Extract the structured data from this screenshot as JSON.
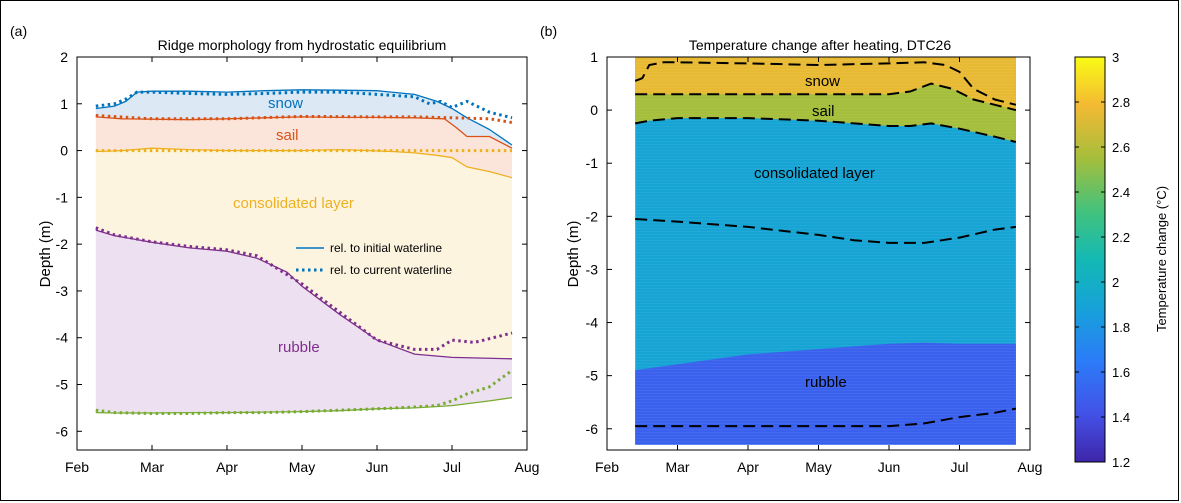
{
  "colors": {
    "snow": "#0072BD",
    "sail": "#D95319",
    "consolidated": "#EDB120",
    "rubble": "#7E2F8E",
    "bottom": "#77AC30",
    "snow_fill": "#dce9f5",
    "sail_fill": "#fbe5da",
    "consolidated_fill": "#fdf4e0",
    "rubble_fill": "#ede0f0",
    "contour": "#000000"
  },
  "x_ticks": [
    "Feb",
    "Mar",
    "Apr",
    "May",
    "Jun",
    "Jul",
    "Aug"
  ],
  "chart_data": [
    {
      "panel_label": "(a)",
      "type": "area",
      "title": "Ridge morphology from hydrostatic equilibrium",
      "xlabel": "",
      "ylabel": "Depth (m)",
      "ylim": [
        -6.4,
        2
      ],
      "xlim": [
        0,
        6
      ],
      "x_axis": "month (0 = Feb, 6 = Aug)",
      "yticks": [
        2,
        1,
        0,
        -1,
        -2,
        -3,
        -4,
        -5,
        -6
      ],
      "annotations": [
        "snow",
        "sail",
        "consolidated layer",
        "rubble"
      ],
      "legend": {
        "position": "right-middle",
        "entries": [
          "rel. to initial waterline",
          "rel. to current waterline"
        ]
      },
      "series": [
        {
          "key": "snow",
          "style": "solid",
          "x": [
            0.25,
            0.5,
            0.65,
            0.8,
            1,
            1.5,
            2,
            2.5,
            3,
            3.5,
            4,
            4.5,
            4.8,
            5,
            5.2,
            5.5,
            5.8
          ],
          "y": [
            0.9,
            0.95,
            1.05,
            1.25,
            1.27,
            1.27,
            1.25,
            1.28,
            1.3,
            1.29,
            1.28,
            1.2,
            1.05,
            0.9,
            0.7,
            0.45,
            0.12
          ]
        },
        {
          "key": "snow",
          "style": "dotted",
          "x": [
            0.25,
            0.5,
            0.65,
            0.8,
            1,
            1.5,
            2,
            2.5,
            3,
            3.5,
            4,
            4.5,
            4.7,
            4.85,
            5,
            5.2,
            5.5,
            5.8
          ],
          "y": [
            0.95,
            1.0,
            1.1,
            1.25,
            1.25,
            1.22,
            1.2,
            1.22,
            1.25,
            1.25,
            1.2,
            1.15,
            1.0,
            1.05,
            0.92,
            1.05,
            0.82,
            0.7
          ]
        },
        {
          "key": "sail",
          "style": "solid",
          "x": [
            0.25,
            0.6,
            1,
            1.5,
            2,
            2.5,
            3,
            3.5,
            4,
            4.5,
            4.9,
            5.05,
            5.2,
            5.5,
            5.8
          ],
          "y": [
            0.72,
            0.68,
            0.67,
            0.66,
            0.68,
            0.7,
            0.72,
            0.71,
            0.71,
            0.7,
            0.68,
            0.5,
            0.3,
            0.3,
            0.05
          ]
        },
        {
          "key": "sail",
          "style": "dotted",
          "x": [
            0.25,
            1,
            2,
            3,
            4,
            4.5,
            5,
            5.5,
            5.8
          ],
          "y": [
            0.75,
            0.68,
            0.68,
            0.73,
            0.72,
            0.72,
            0.7,
            0.68,
            0.6
          ]
        },
        {
          "key": "consolidated",
          "style": "solid",
          "x": [
            0.25,
            0.6,
            1,
            1.5,
            2,
            2.5,
            3,
            3.5,
            3.9,
            4.2,
            4.5,
            4.8,
            5,
            5.2,
            5.5,
            5.8
          ],
          "y": [
            -0.02,
            0,
            0.05,
            0.02,
            0,
            0,
            0,
            0.02,
            0,
            -0.02,
            -0.05,
            -0.1,
            -0.15,
            -0.35,
            -0.45,
            -0.58
          ]
        },
        {
          "key": "consolidated",
          "style": "dotted",
          "x": [
            0.25,
            1,
            2,
            3,
            4,
            5,
            5.8
          ],
          "y": [
            0,
            0,
            0,
            0,
            0,
            0,
            0
          ]
        },
        {
          "key": "rubble",
          "style": "solid",
          "x": [
            0.25,
            0.5,
            1,
            1.5,
            2,
            2.4,
            2.8,
            3,
            3.5,
            4,
            4.5,
            5,
            5.8
          ],
          "y": [
            -1.7,
            -1.82,
            -1.96,
            -2.08,
            -2.15,
            -2.3,
            -2.6,
            -2.9,
            -3.5,
            -4.05,
            -4.35,
            -4.42,
            -4.45
          ]
        },
        {
          "key": "rubble",
          "style": "dotted",
          "x": [
            0.25,
            0.5,
            1,
            1.5,
            2,
            2.4,
            2.8,
            3,
            3.5,
            4,
            4.5,
            4.8,
            5,
            5.3,
            5.8
          ],
          "y": [
            -1.65,
            -1.8,
            -1.95,
            -2.05,
            -2.12,
            -2.25,
            -2.65,
            -2.85,
            -3.45,
            -4.05,
            -4.25,
            -4.25,
            -4.05,
            -4.1,
            -3.9
          ]
        },
        {
          "key": "bottom",
          "style": "solid",
          "x": [
            0.25,
            0.5,
            1,
            1.5,
            2,
            2.5,
            3,
            3.5,
            4,
            4.5,
            5,
            5.5,
            5.8
          ],
          "y": [
            -5.6,
            -5.61,
            -5.61,
            -5.6,
            -5.6,
            -5.59,
            -5.58,
            -5.56,
            -5.52,
            -5.5,
            -5.45,
            -5.35,
            -5.28
          ]
        },
        {
          "key": "bottom",
          "style": "dotted",
          "x": [
            0.25,
            0.5,
            1,
            1.5,
            2,
            2.5,
            3,
            3.5,
            4,
            4.5,
            4.8,
            5,
            5.2,
            5.5,
            5.8
          ],
          "y": [
            -5.55,
            -5.6,
            -5.62,
            -5.62,
            -5.6,
            -5.6,
            -5.58,
            -5.55,
            -5.52,
            -5.48,
            -5.45,
            -5.35,
            -5.2,
            -5.05,
            -4.7
          ]
        }
      ]
    },
    {
      "panel_label": "(b)",
      "type": "heatmap",
      "title": "Temperature change after heating, DTC26",
      "xlabel": "",
      "ylabel": "Depth (m)",
      "ylim": [
        -6.4,
        1
      ],
      "xlim": [
        0,
        6
      ],
      "x_axis": "month (0 = Feb, 6 = Aug)",
      "yticks": [
        1,
        0,
        -1,
        -2,
        -3,
        -4,
        -5,
        -6
      ],
      "annotations": [
        "snow",
        "sail",
        "consolidated layer",
        "rubble"
      ],
      "colorbar": {
        "label": "Temperature change (°C)",
        "range": [
          1.2,
          3
        ],
        "ticks": [
          "3",
          "2.8",
          "2.6",
          "2.4",
          "2.2",
          "2",
          "1.8",
          "1.6",
          "1.4",
          "1.2"
        ]
      },
      "regions": [
        {
          "name": "snow",
          "value": 2.75
        },
        {
          "name": "sail",
          "value": 2.55
        },
        {
          "name": "consolidated layer",
          "value": 1.9
        },
        {
          "name": "rubble",
          "value": 1.5
        }
      ],
      "contours": [
        {
          "name": "snow top",
          "x": [
            0.4,
            0.5,
            0.6,
            0.8,
            1,
            2,
            3,
            4,
            4.5,
            4.8,
            5,
            5.2,
            5.5,
            5.8
          ],
          "y": [
            0.55,
            0.6,
            0.85,
            0.9,
            0.9,
            0.88,
            0.85,
            0.88,
            0.9,
            0.85,
            0.72,
            0.4,
            0.2,
            0.1
          ]
        },
        {
          "name": "snow-sail boundary",
          "x": [
            0.4,
            1,
            2,
            3,
            4,
            4.3,
            4.6,
            4.9,
            5.2,
            5.5,
            5.8
          ],
          "y": [
            0.3,
            0.3,
            0.3,
            0.3,
            0.3,
            0.35,
            0.5,
            0.4,
            0.2,
            0.1,
            0.0
          ]
        },
        {
          "name": "waterline",
          "x": [
            0.4,
            0.6,
            1,
            2,
            3,
            4,
            4.3,
            4.6,
            5,
            5.5,
            5.8
          ],
          "y": [
            -0.25,
            -0.2,
            -0.15,
            -0.15,
            -0.2,
            -0.3,
            -0.3,
            -0.25,
            -0.35,
            -0.5,
            -0.6
          ]
        },
        {
          "name": "consolidated-rubble boundary",
          "x": [
            0.4,
            1,
            2,
            3,
            3.5,
            4,
            4.5,
            5,
            5.5,
            5.8
          ],
          "y": [
            -2.05,
            -2.1,
            -2.2,
            -2.35,
            -2.45,
            -2.5,
            -2.5,
            -2.4,
            -2.25,
            -2.2
          ]
        },
        {
          "name": "rubble bottom",
          "x": [
            0.4,
            1,
            2,
            3,
            4,
            4.5,
            5,
            5.5,
            5.8
          ],
          "y": [
            -5.95,
            -5.95,
            -5.95,
            -5.95,
            -5.95,
            -5.9,
            -5.78,
            -5.7,
            -5.62
          ]
        }
      ]
    }
  ]
}
